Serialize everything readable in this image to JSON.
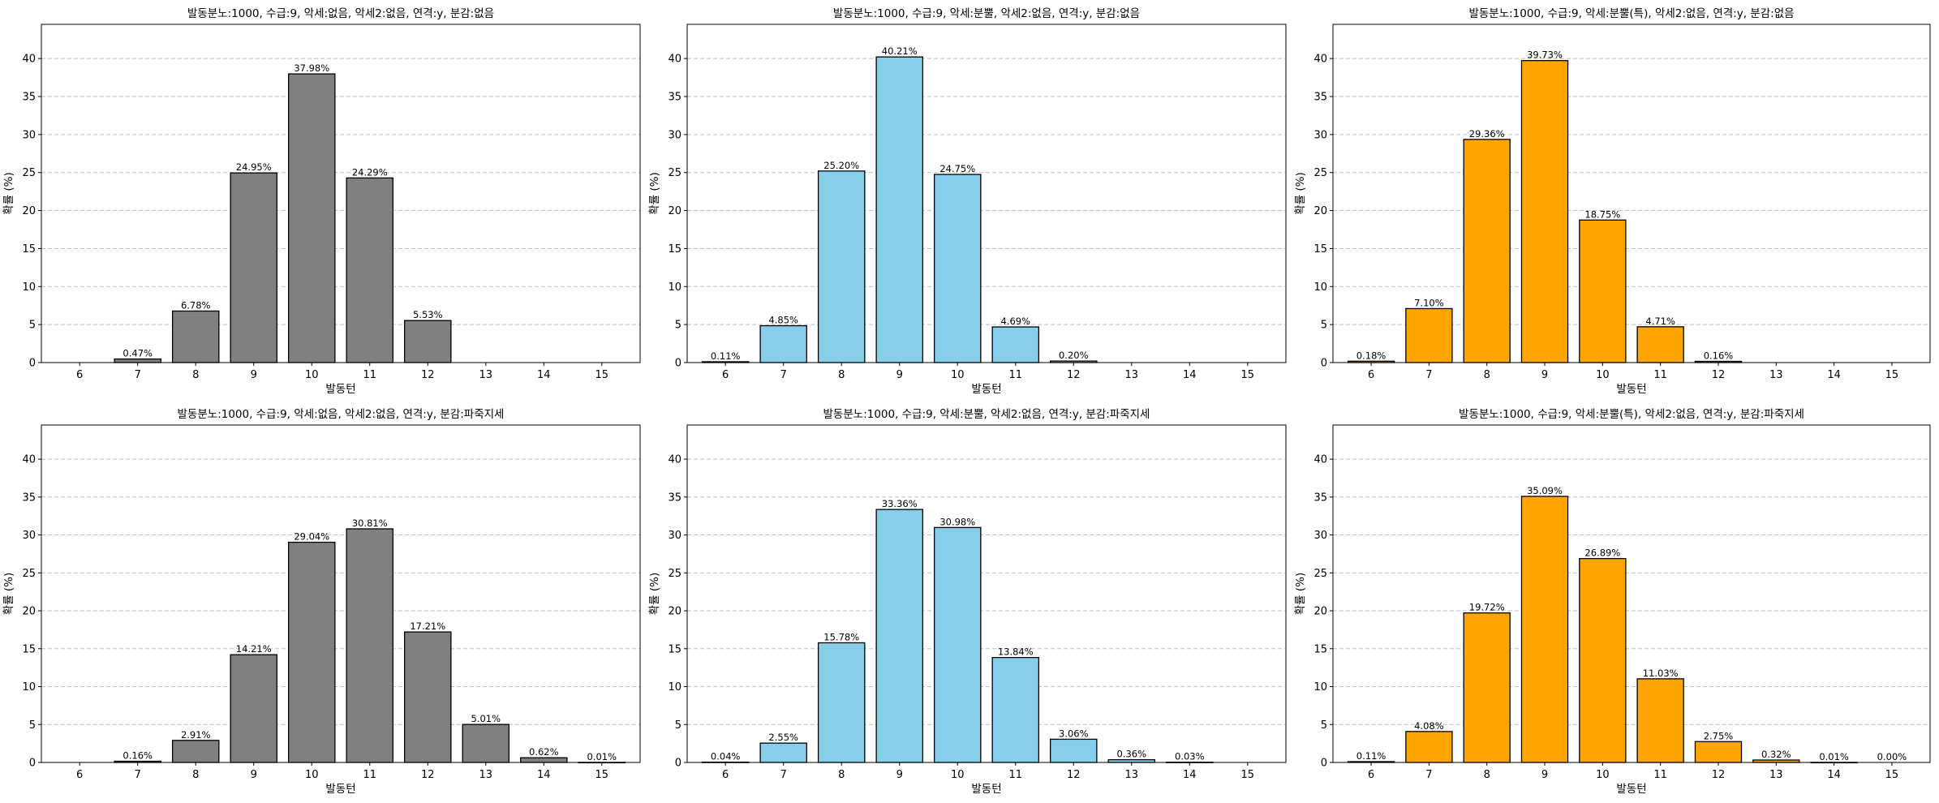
{
  "chart_data": [
    {
      "type": "bar",
      "title": "발동분노:1000, 수급:9, 악세:없음, 악세2:없음, 연격:y, 분감:없음",
      "xlabel": "발동턴",
      "ylabel": "확률 (%)",
      "ylim": [
        0,
        44.5
      ],
      "yticks": [
        0,
        5,
        10,
        15,
        20,
        25,
        30,
        35,
        40
      ],
      "grid": "y-dashed",
      "color": "#808080",
      "categories": [
        "6",
        "7",
        "8",
        "9",
        "10",
        "11",
        "12",
        "13",
        "14",
        "15"
      ],
      "values": [
        0,
        0.47,
        6.78,
        24.95,
        37.98,
        24.29,
        5.53,
        0,
        0,
        0
      ],
      "labels": [
        "",
        "0.47%",
        "6.78%",
        "24.95%",
        "37.98%",
        "24.29%",
        "5.53%",
        "",
        "",
        ""
      ]
    },
    {
      "type": "bar",
      "title": "발동분노:1000, 수급:9, 악세:분뿔, 악세2:없음, 연격:y, 분감:없음",
      "xlabel": "발동턴",
      "ylabel": "확률 (%)",
      "ylim": [
        0,
        44.5
      ],
      "yticks": [
        0,
        5,
        10,
        15,
        20,
        25,
        30,
        35,
        40
      ],
      "grid": "y-dashed",
      "color": "#87CEEB",
      "categories": [
        "6",
        "7",
        "8",
        "9",
        "10",
        "11",
        "12",
        "13",
        "14",
        "15"
      ],
      "values": [
        0.11,
        4.85,
        25.2,
        40.21,
        24.75,
        4.69,
        0.2,
        0,
        0,
        0
      ],
      "labels": [
        "0.11%",
        "4.85%",
        "25.20%",
        "40.21%",
        "24.75%",
        "4.69%",
        "0.20%",
        "",
        "",
        ""
      ]
    },
    {
      "type": "bar",
      "title": "발동분노:1000, 수급:9, 악세:분뿔(특), 악세2:없음, 연격:y, 분감:없음",
      "xlabel": "발동턴",
      "ylabel": "확률 (%)",
      "ylim": [
        0,
        44.5
      ],
      "yticks": [
        0,
        5,
        10,
        15,
        20,
        25,
        30,
        35,
        40
      ],
      "grid": "y-dashed",
      "color": "#FFA500",
      "categories": [
        "6",
        "7",
        "8",
        "9",
        "10",
        "11",
        "12",
        "13",
        "14",
        "15"
      ],
      "values": [
        0.18,
        7.1,
        29.36,
        39.73,
        18.75,
        4.71,
        0.16,
        0,
        0,
        0
      ],
      "labels": [
        "0.18%",
        "7.10%",
        "29.36%",
        "39.73%",
        "18.75%",
        "4.71%",
        "0.16%",
        "",
        "",
        ""
      ]
    },
    {
      "type": "bar",
      "title": "발동분노:1000, 수급:9, 악세:없음, 악세2:없음, 연격:y, 분감:파죽지세",
      "xlabel": "발동턴",
      "ylabel": "확률 (%)",
      "ylim": [
        0,
        44.5
      ],
      "yticks": [
        0,
        5,
        10,
        15,
        20,
        25,
        30,
        35,
        40
      ],
      "grid": "y-dashed",
      "color": "#808080",
      "categories": [
        "6",
        "7",
        "8",
        "9",
        "10",
        "11",
        "12",
        "13",
        "14",
        "15"
      ],
      "values": [
        0,
        0.16,
        2.91,
        14.21,
        29.04,
        30.81,
        17.21,
        5.01,
        0.62,
        0.01
      ],
      "labels": [
        "",
        "0.16%",
        "2.91%",
        "14.21%",
        "29.04%",
        "30.81%",
        "17.21%",
        "5.01%",
        "0.62%",
        "0.01%"
      ]
    },
    {
      "type": "bar",
      "title": "발동분노:1000, 수급:9, 악세:분뿔, 악세2:없음, 연격:y, 분감:파죽지세",
      "xlabel": "발동턴",
      "ylabel": "확률 (%)",
      "ylim": [
        0,
        44.5
      ],
      "yticks": [
        0,
        5,
        10,
        15,
        20,
        25,
        30,
        35,
        40
      ],
      "grid": "y-dashed",
      "color": "#87CEEB",
      "categories": [
        "6",
        "7",
        "8",
        "9",
        "10",
        "11",
        "12",
        "13",
        "14",
        "15"
      ],
      "values": [
        0.04,
        2.55,
        15.78,
        33.36,
        30.98,
        13.84,
        3.06,
        0.36,
        0.03,
        0
      ],
      "labels": [
        "0.04%",
        "2.55%",
        "15.78%",
        "33.36%",
        "30.98%",
        "13.84%",
        "3.06%",
        "0.36%",
        "0.03%",
        ""
      ]
    },
    {
      "type": "bar",
      "title": "발동분노:1000, 수급:9, 악세:분뿔(특), 악세2:없음, 연격:y, 분감:파죽지세",
      "xlabel": "발동턴",
      "ylabel": "확률 (%)",
      "ylim": [
        0,
        44.5
      ],
      "yticks": [
        0,
        5,
        10,
        15,
        20,
        25,
        30,
        35,
        40
      ],
      "grid": "y-dashed",
      "color": "#FFA500",
      "categories": [
        "6",
        "7",
        "8",
        "9",
        "10",
        "11",
        "12",
        "13",
        "14",
        "15"
      ],
      "values": [
        0.11,
        4.08,
        19.72,
        35.09,
        26.89,
        11.03,
        2.75,
        0.32,
        0.01,
        0.0
      ],
      "labels": [
        "0.11%",
        "4.08%",
        "19.72%",
        "35.09%",
        "26.89%",
        "11.03%",
        "2.75%",
        "0.32%",
        "0.01%",
        "0.00%"
      ]
    }
  ]
}
